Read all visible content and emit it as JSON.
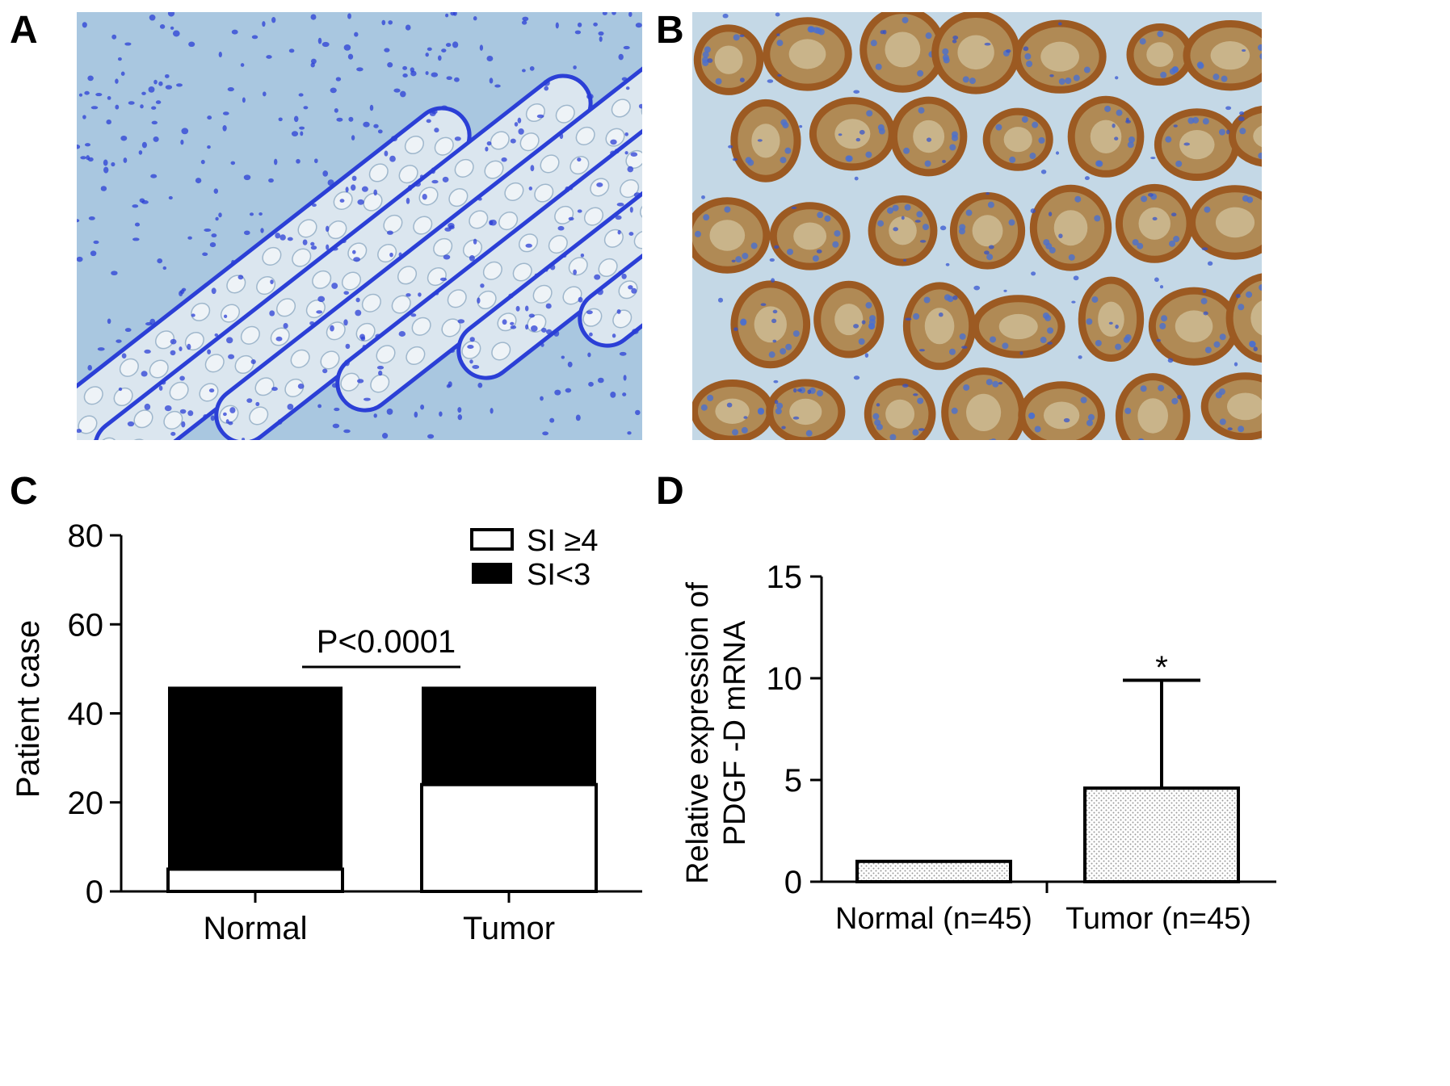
{
  "panels": {
    "a": {
      "letter": "A"
    },
    "b": {
      "letter": "B"
    },
    "c": {
      "letter": "C"
    },
    "d": {
      "letter": "D"
    }
  },
  "colors": {
    "normal_tissue_bg": "#a9c7e0",
    "normal_tissue_nuclei": "#2b3fd6",
    "normal_tissue_cells": "#dbe6ef",
    "tumor_tissue_bg": "#c4d8e6",
    "tumor_tissue_stain": "#9c5a22",
    "tumor_tissue_nuclei": "#4a6fd0",
    "bar_black": "#000000",
    "bar_white": "#ffffff",
    "bar_dotted": "#e8e8e8"
  },
  "chart_data": [
    {
      "type": "bar",
      "stacked": true,
      "categories": [
        "Normal",
        "Tumor"
      ],
      "series": [
        {
          "name": "SI ≥4",
          "values": [
            5,
            24
          ]
        },
        {
          "name": "SI<3",
          "values": [
            41,
            22
          ]
        }
      ],
      "ylabel": "Patient case",
      "ylim": [
        0,
        80
      ],
      "yticks": [
        0,
        20,
        40,
        60,
        80
      ],
      "legend_position": "top-right",
      "annotation": "P<0.0001"
    },
    {
      "type": "bar",
      "categories": [
        "Normal (n=45)",
        "Tumor (n=45)"
      ],
      "values": [
        1.0,
        4.6
      ],
      "error_upper": [
        0,
        5.3
      ],
      "ylabel_lines": [
        "Relative expression of",
        "PDGF -D mRNA"
      ],
      "ylim": [
        0,
        15
      ],
      "yticks": [
        0,
        5,
        10,
        15
      ],
      "annotation": "*"
    }
  ]
}
